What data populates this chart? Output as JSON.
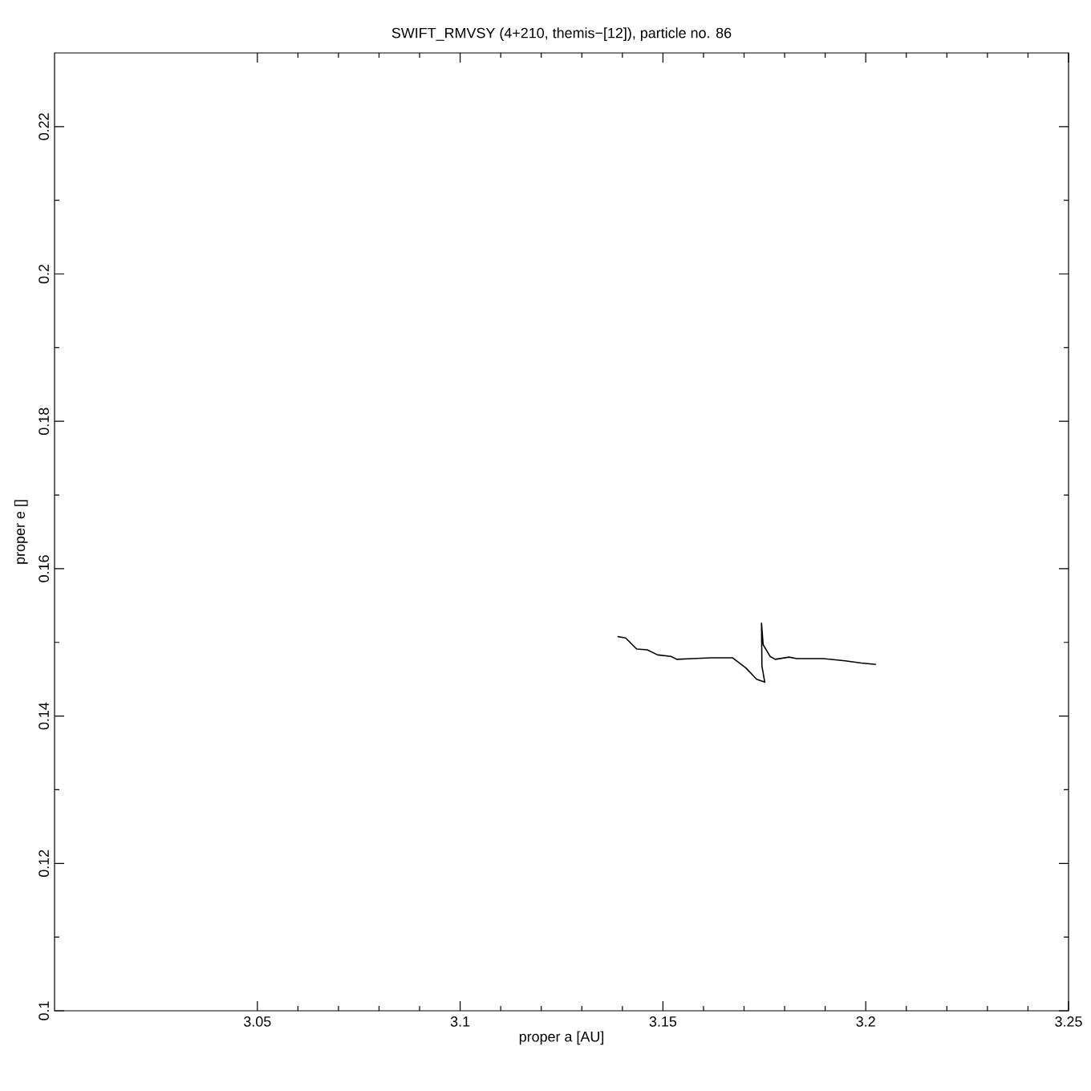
{
  "chart_data": {
    "type": "line",
    "title": "SWIFT_RMVSY (4+210, themis−[12]), particle no. 86",
    "xlabel": "proper a [AU]",
    "ylabel": "proper e []",
    "x": [
      3.1388,
      3.1408,
      3.1435,
      3.1461,
      3.1487,
      3.152,
      3.1534,
      3.1573,
      3.1619,
      3.1672,
      3.1705,
      3.1731,
      3.1751,
      3.1744,
      3.1743,
      3.1747,
      3.1764,
      3.1777,
      3.1811,
      3.183,
      3.1896,
      3.1949,
      3.1989,
      3.2025
    ],
    "series": [
      {
        "color": "#000000",
        "values": [
          0.1508,
          0.1506,
          0.1491,
          0.149,
          0.1483,
          0.1481,
          0.1477,
          0.1478,
          0.1479,
          0.1479,
          0.1465,
          0.145,
          0.1446,
          0.1468,
          0.1526,
          0.1497,
          0.1481,
          0.1477,
          0.148,
          0.1478,
          0.1478,
          0.1475,
          0.1472,
          0.147
        ]
      }
    ],
    "xlim": [
      3.0,
      3.25
    ],
    "xticks": [
      3.05,
      3.1,
      3.15,
      3.2,
      3.25
    ],
    "ylim": [
      0.1,
      0.23
    ],
    "yticks": [
      0.1,
      0.12,
      0.14,
      0.16,
      0.18,
      0.2,
      0.22
    ],
    "grid": false,
    "marker": "none",
    "line_style": "solid"
  }
}
